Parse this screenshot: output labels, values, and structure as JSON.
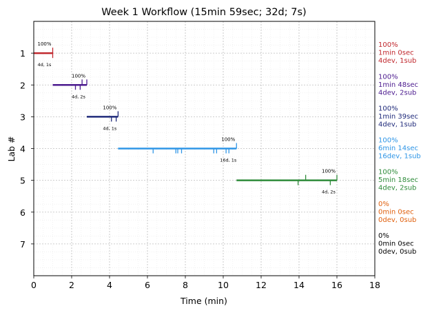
{
  "chart_data": {
    "type": "timeline",
    "title": "Week 1 Workflow (15min 59sec; 32d; 7s)",
    "xlabel": "Time (min)",
    "ylabel": "Lab #",
    "xlim": [
      0,
      18
    ],
    "ylim": [
      8,
      0
    ],
    "xticks": [
      0,
      2,
      4,
      6,
      8,
      10,
      12,
      14,
      16,
      18
    ],
    "yticks": [
      1,
      2,
      3,
      4,
      5,
      6,
      7
    ],
    "grid": true,
    "labs": [
      {
        "lab": 1,
        "color": "#c0272d",
        "start": 0.0,
        "end": 1.0,
        "pct_label": "100%",
        "detail_label": "4d, 1s",
        "ticks_up": [
          1.0
        ],
        "ticks_down": [
          1.0
        ],
        "right_lines": [
          "100%",
          "1min 0sec",
          "4dev, 1sub"
        ]
      },
      {
        "lab": 2,
        "color": "#4b1a8e",
        "start": 1.0,
        "end": 2.8,
        "pct_label": "100%",
        "detail_label": "4d, 2s",
        "ticks_up": [
          2.55,
          2.8
        ],
        "ticks_down": [
          2.2,
          2.45
        ],
        "right_lines": [
          "100%",
          "1min 48sec",
          "4dev, 2sub"
        ]
      },
      {
        "lab": 3,
        "color": "#1f2a7a",
        "start": 2.8,
        "end": 4.45,
        "pct_label": "100%",
        "detail_label": "4d, 1s",
        "ticks_up": [
          4.45
        ],
        "ticks_down": [
          4.1,
          4.35
        ],
        "right_lines": [
          "100%",
          "1min 39sec",
          "4dev, 1sub"
        ]
      },
      {
        "lab": 4,
        "color": "#2e95e6",
        "start": 4.45,
        "end": 10.7,
        "pct_label": "100%",
        "detail_label": "16d, 1s",
        "ticks_up": [
          10.7
        ],
        "ticks_down": [
          6.3,
          7.5,
          7.6,
          7.8,
          9.5,
          9.65,
          10.15,
          10.3
        ],
        "right_lines": [
          "100%",
          "6min 14sec",
          "16dev, 1sub"
        ]
      },
      {
        "lab": 5,
        "color": "#2e8b3a",
        "start": 10.7,
        "end": 16.0,
        "pct_label": "100%",
        "detail_label": "4d, 2s",
        "ticks_up": [
          14.35,
          16.0
        ],
        "ticks_down": [
          13.95,
          15.65
        ],
        "right_lines": [
          "100%",
          "5min 18sec",
          "4dev, 2sub"
        ]
      },
      {
        "lab": 6,
        "color": "#e0600e",
        "right_lines": [
          "0%",
          "0min 0sec",
          "0dev, 0sub"
        ]
      },
      {
        "lab": 7,
        "color": "#000000",
        "right_lines": [
          "0%",
          "0min 0sec",
          "0dev, 0sub"
        ]
      }
    ]
  }
}
